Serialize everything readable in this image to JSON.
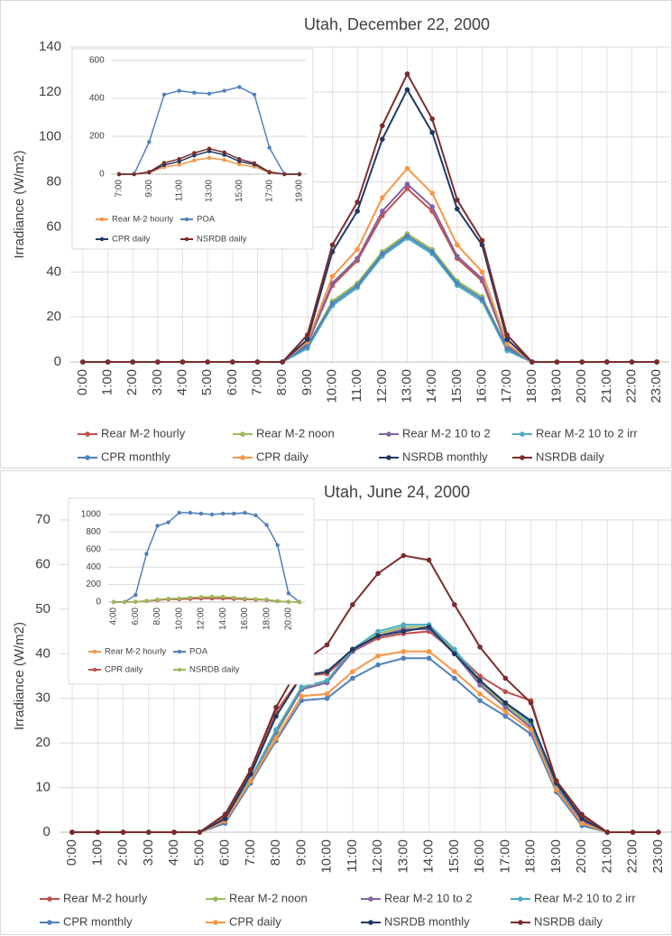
{
  "chart_data": [
    {
      "type": "line",
      "title": "Utah, December 22, 2000",
      "y_label": "Irradiance (W/m2)",
      "categories": [
        "0:00",
        "1:00",
        "2:00",
        "3:00",
        "4:00",
        "5:00",
        "6:00",
        "7:00",
        "8:00",
        "9:00",
        "10:00",
        "11:00",
        "12:00",
        "13:00",
        "14:00",
        "15:00",
        "16:00",
        "17:00",
        "18:00",
        "19:00",
        "20:00",
        "21:00",
        "22:00",
        "23:00"
      ],
      "ylim": [
        0,
        140
      ],
      "yticks": [
        0,
        20,
        40,
        60,
        80,
        100,
        120,
        140
      ],
      "grid": "both",
      "legend": "bottom",
      "series": [
        {
          "name": "Rear M-2 hourly",
          "color": "#c0504d",
          "values": [
            0,
            0,
            0,
            0,
            0,
            0,
            0,
            0,
            0,
            8,
            34,
            45,
            65,
            77,
            67,
            46,
            36,
            7,
            0,
            0,
            0,
            0,
            0,
            0
          ]
        },
        {
          "name": "Rear M-2 noon",
          "color": "#9bbb59",
          "values": [
            0,
            0,
            0,
            0,
            0,
            0,
            0,
            0,
            0,
            7,
            27,
            35,
            49,
            57,
            50,
            36,
            29,
            6,
            0,
            0,
            0,
            0,
            0,
            0
          ]
        },
        {
          "name": "Rear M-2 10 to 2",
          "color": "#8064a2",
          "values": [
            0,
            0,
            0,
            0,
            0,
            0,
            0,
            0,
            0,
            8,
            35,
            46,
            67,
            79,
            69,
            47,
            37,
            7,
            0,
            0,
            0,
            0,
            0,
            0
          ]
        },
        {
          "name": "Rear M-2 10 to 2 irr",
          "color": "#4bacc6",
          "values": [
            0,
            0,
            0,
            0,
            0,
            0,
            0,
            0,
            0,
            6,
            25,
            33,
            47,
            55,
            48,
            34,
            27,
            5,
            0,
            0,
            0,
            0,
            0,
            0
          ]
        },
        {
          "name": "CPR monthly",
          "color": "#4f81bd",
          "values": [
            0,
            0,
            0,
            0,
            0,
            0,
            0,
            0,
            0,
            7,
            26,
            34,
            48,
            56,
            49,
            35,
            28,
            6,
            0,
            0,
            0,
            0,
            0,
            0
          ]
        },
        {
          "name": "CPR daily",
          "color": "#f79646",
          "values": [
            0,
            0,
            0,
            0,
            0,
            0,
            0,
            0,
            0,
            9,
            38,
            50,
            73,
            86,
            75,
            52,
            40,
            8,
            0,
            0,
            0,
            0,
            0,
            0
          ]
        },
        {
          "name": "NSRDB monthly",
          "color": "#1f3864",
          "values": [
            0,
            0,
            0,
            0,
            0,
            0,
            0,
            0,
            0,
            10,
            49,
            67,
            99,
            121,
            102,
            68,
            52,
            10,
            0,
            0,
            0,
            0,
            0,
            0
          ]
        },
        {
          "name": "NSRDB daily",
          "color": "#7b2c2c",
          "values": [
            0,
            0,
            0,
            0,
            0,
            0,
            0,
            0,
            0,
            12,
            52,
            71,
            105,
            128,
            108,
            72,
            54,
            12,
            0,
            0,
            0,
            0,
            0,
            0
          ]
        }
      ]
    },
    {
      "type": "line",
      "categories": [
        "7:00",
        null,
        "9:00",
        null,
        "11:00",
        null,
        "13:00",
        null,
        "15:00",
        null,
        "17:00",
        null,
        "19:00"
      ],
      "ylim": [
        0,
        600
      ],
      "yticks": [
        0,
        200,
        400,
        600
      ],
      "grid": "y",
      "legend": "bottom",
      "series": [
        {
          "name": "Rear M-2 hourly",
          "color": "#f79646",
          "values": [
            0,
            0,
            8,
            38,
            50,
            73,
            86,
            75,
            52,
            40,
            8,
            0,
            0
          ]
        },
        {
          "name": "POA",
          "color": "#4f81bd",
          "values": [
            0,
            0,
            170,
            420,
            440,
            430,
            425,
            440,
            460,
            420,
            140,
            0,
            0
          ]
        },
        {
          "name": "CPR daily",
          "color": "#1f3864",
          "values": [
            0,
            0,
            10,
            49,
            67,
            99,
            121,
            102,
            68,
            52,
            10,
            0,
            0
          ]
        },
        {
          "name": "NSRDB daily",
          "color": "#7b2c2c",
          "values": [
            0,
            0,
            12,
            60,
            80,
            112,
            135,
            115,
            80,
            58,
            12,
            0,
            0
          ]
        }
      ]
    },
    {
      "type": "line",
      "title": "Utah, June 24, 2000",
      "y_label": "Irradiance (W/m2)",
      "categories": [
        "0:00",
        "1:00",
        "2:00",
        "3:00",
        "4:00",
        "5:00",
        "6:00",
        "7:00",
        "8:00",
        "9:00",
        "10:00",
        "11:00",
        "12:00",
        "13:00",
        "14:00",
        "15:00",
        "16:00",
        "17:00",
        "18:00",
        "19:00",
        "20:00",
        "21:00",
        "22:00",
        "23:00"
      ],
      "ylim": [
        0,
        70
      ],
      "yticks": [
        0,
        10,
        20,
        30,
        40,
        50,
        60,
        70
      ],
      "grid": "both",
      "legend": "bottom",
      "series": [
        {
          "name": "Rear M-2 hourly",
          "color": "#c0504d",
          "values": [
            0,
            0,
            0,
            0,
            0,
            0,
            3.5,
            13.5,
            27,
            35,
            35.5,
            40.5,
            43.5,
            44.5,
            45,
            40.5,
            35,
            31.5,
            29.5,
            11,
            3.5,
            0,
            0,
            0
          ]
        },
        {
          "name": "Rear M-2 noon",
          "color": "#9bbb59",
          "values": [
            0,
            0,
            0,
            0,
            0,
            0,
            3,
            12,
            22,
            32,
            34,
            40.5,
            44.5,
            46,
            46,
            40.5,
            33.5,
            28.5,
            24,
            10,
            2.5,
            0,
            0,
            0
          ]
        },
        {
          "name": "Rear M-2 10 to 2",
          "color": "#8064a2",
          "values": [
            0,
            0,
            0,
            0,
            0,
            0,
            3,
            12,
            22.5,
            32,
            33.5,
            40.5,
            44,
            45.5,
            45.5,
            40,
            33,
            28,
            23.5,
            10,
            2.5,
            0,
            0,
            0
          ]
        },
        {
          "name": "Rear M-2 10 to 2 irr",
          "color": "#4bacc6",
          "values": [
            0,
            0,
            0,
            0,
            0,
            0,
            3,
            12,
            23,
            32.5,
            34,
            41,
            45,
            46.5,
            46.5,
            41,
            34,
            29,
            24.5,
            10.5,
            3,
            0,
            0,
            0
          ]
        },
        {
          "name": "CPR monthly",
          "color": "#4f81bd",
          "values": [
            0,
            0,
            0,
            0,
            0,
            0,
            2,
            11,
            20.5,
            29.5,
            30,
            34.5,
            37.5,
            39,
            39,
            34.5,
            29.5,
            26,
            22,
            9,
            1.5,
            0,
            0,
            0
          ]
        },
        {
          "name": "CPR daily",
          "color": "#f79646",
          "values": [
            0,
            0,
            0,
            0,
            0,
            0,
            2.5,
            11.5,
            21,
            30.5,
            31,
            36,
            39.5,
            40.5,
            40.5,
            36,
            31,
            27,
            23,
            9.5,
            2,
            0,
            0,
            0
          ]
        },
        {
          "name": "NSRDB monthly",
          "color": "#1f3864",
          "values": [
            0,
            0,
            0,
            0,
            0,
            0,
            3,
            13,
            26,
            35,
            36,
            41,
            44,
            45,
            46,
            40,
            34,
            29,
            25,
            11,
            3,
            0,
            0,
            0
          ]
        },
        {
          "name": "NSRDB daily",
          "color": "#7b2c2c",
          "values": [
            0,
            0,
            0,
            0,
            0,
            0,
            4,
            14,
            28,
            38,
            42,
            51,
            58,
            62,
            61,
            51,
            41.5,
            34.5,
            29,
            11.5,
            4,
            0,
            0,
            0
          ]
        }
      ]
    },
    {
      "type": "line",
      "categories": [
        "4:00",
        null,
        "6:00",
        null,
        "8:00",
        null,
        "10:00",
        null,
        "12:00",
        null,
        "14:00",
        null,
        "16:00",
        null,
        "18:00",
        null,
        "20:00",
        null
      ],
      "ylim": [
        0,
        1000
      ],
      "yticks": [
        0,
        200,
        400,
        600,
        800,
        1000
      ],
      "grid": "y",
      "legend": "bottom",
      "series": [
        {
          "name": "Rear M-2 hourly",
          "color": "#f79646",
          "values": [
            0,
            0,
            3,
            13,
            27,
            35,
            35,
            40,
            43,
            44,
            45,
            40,
            35,
            31,
            29,
            11,
            3,
            0
          ]
        },
        {
          "name": "POA",
          "color": "#4f81bd",
          "values": [
            0,
            0,
            80,
            550,
            870,
            910,
            1020,
            1020,
            1010,
            1000,
            1010,
            1010,
            1020,
            990,
            880,
            650,
            100,
            0
          ]
        },
        {
          "name": "CPR daily",
          "color": "#c0504d",
          "values": [
            0,
            0,
            2.5,
            11.5,
            21,
            30.5,
            31,
            36,
            39.5,
            40.5,
            40.5,
            36,
            31,
            27,
            23,
            9.5,
            2,
            0
          ]
        },
        {
          "name": "NSRDB daily",
          "color": "#9bbb59",
          "values": [
            0,
            0,
            4,
            14,
            28,
            38,
            42,
            51,
            58,
            62,
            61,
            51,
            41.5,
            34.5,
            29,
            11.5,
            4,
            0
          ]
        }
      ]
    }
  ]
}
